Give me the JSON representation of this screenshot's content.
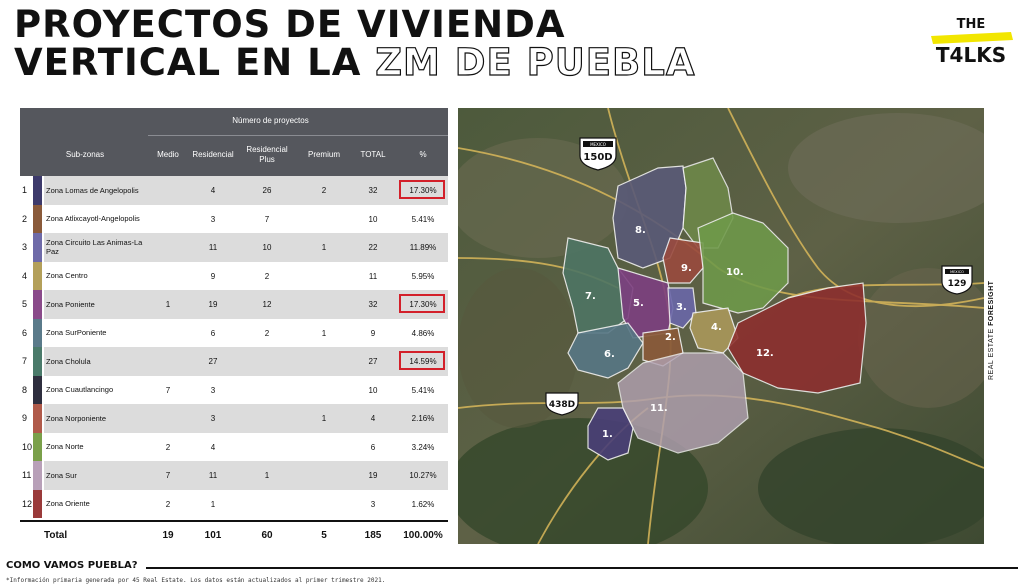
{
  "title": {
    "line1": "PROYECTOS DE VIVIENDA",
    "line2_prefix": "VERTICAL EN LA ",
    "line2_outline": "ZM DE PUEBLA"
  },
  "logo": {
    "top": "THE",
    "main": "T4LKS"
  },
  "table": {
    "group_header": "Número de proyectos",
    "headers": {
      "subzonas": "Sub-zonas",
      "medio": "Medio",
      "residencial": "Residencial",
      "residencial_plus": "Residencial Plus",
      "premium": "Premium",
      "total": "TOTAL",
      "pct": "%"
    },
    "rows": [
      {
        "idx": "1",
        "name": "Zona Lomas de Angelopolis",
        "medio": "",
        "residencial": "4",
        "plus": "26",
        "premium": "2",
        "total": "32",
        "pct": "17.30%",
        "highlight": true,
        "color": "#3d3a6b"
      },
      {
        "idx": "2",
        "name": "Zona Atlixcayotl-Angelopolis",
        "medio": "",
        "residencial": "3",
        "plus": "7",
        "premium": "",
        "total": "10",
        "pct": "5.41%",
        "highlight": false,
        "color": "#8a5a3a"
      },
      {
        "idx": "3",
        "name": "Zona Circuito Las Animas-La Paz",
        "medio": "",
        "residencial": "11",
        "plus": "10",
        "premium": "1",
        "total": "22",
        "pct": "11.89%",
        "highlight": false,
        "color": "#6e6aa8"
      },
      {
        "idx": "4",
        "name": "Zona Centro",
        "medio": "",
        "residencial": "9",
        "plus": "2",
        "premium": "",
        "total": "11",
        "pct": "5.95%",
        "highlight": false,
        "color": "#b4a05a"
      },
      {
        "idx": "5",
        "name": "Zona Poniente",
        "medio": "1",
        "residencial": "19",
        "plus": "12",
        "premium": "",
        "total": "32",
        "pct": "17.30%",
        "highlight": true,
        "color": "#8a4a8a"
      },
      {
        "idx": "6",
        "name": "Zona SurPoniente",
        "medio": "",
        "residencial": "6",
        "plus": "2",
        "premium": "1",
        "total": "9",
        "pct": "4.86%",
        "highlight": false,
        "color": "#5a7a8a"
      },
      {
        "idx": "7",
        "name": "Zona Cholula",
        "medio": "",
        "residencial": "27",
        "plus": "",
        "premium": "",
        "total": "27",
        "pct": "14.59%",
        "highlight": true,
        "color": "#4a7a6a"
      },
      {
        "idx": "8",
        "name": "Zona Cuautlancingo",
        "medio": "7",
        "residencial": "3",
        "plus": "",
        "premium": "",
        "total": "10",
        "pct": "5.41%",
        "highlight": false,
        "color": "#2e2e3e"
      },
      {
        "idx": "9",
        "name": "Zona Norponiente",
        "medio": "",
        "residencial": "3",
        "plus": "",
        "premium": "1",
        "total": "4",
        "pct": "2.16%",
        "highlight": false,
        "color": "#b05a4a"
      },
      {
        "idx": "10",
        "name": "Zona Norte",
        "medio": "2",
        "residencial": "4",
        "plus": "",
        "premium": "",
        "total": "6",
        "pct": "3.24%",
        "highlight": false,
        "color": "#7aa04a"
      },
      {
        "idx": "11",
        "name": "Zona Sur",
        "medio": "7",
        "residencial": "11",
        "plus": "1",
        "premium": "",
        "total": "19",
        "pct": "10.27%",
        "highlight": false,
        "color": "#b8a0b8"
      },
      {
        "idx": "12",
        "name": "Zona Oriente",
        "medio": "2",
        "residencial": "1",
        "plus": "",
        "premium": "",
        "total": "3",
        "pct": "1.62%",
        "highlight": false,
        "color": "#9a3a3a"
      }
    ],
    "total": {
      "label": "Total",
      "medio": "19",
      "residencial": "101",
      "plus": "60",
      "premium": "5",
      "total": "185",
      "pct": "100.00%"
    }
  },
  "map": {
    "shields": [
      "150D",
      "129",
      "438D"
    ],
    "shield_top": "MEXICO",
    "zones": [
      "1.",
      "2.",
      "3.",
      "4.",
      "5.",
      "6.",
      "7.",
      "8.",
      "9.",
      "10.",
      "11.",
      "12."
    ]
  },
  "side_label": {
    "regular": "REAL ESTATE",
    "bold": "FORESIGHT"
  },
  "footer": "COMO VAMOS PUEBLA?",
  "footnote": "*Información primaria generada por 45 Real Estate. Los datos están actualizados al primer trimestre 2021."
}
